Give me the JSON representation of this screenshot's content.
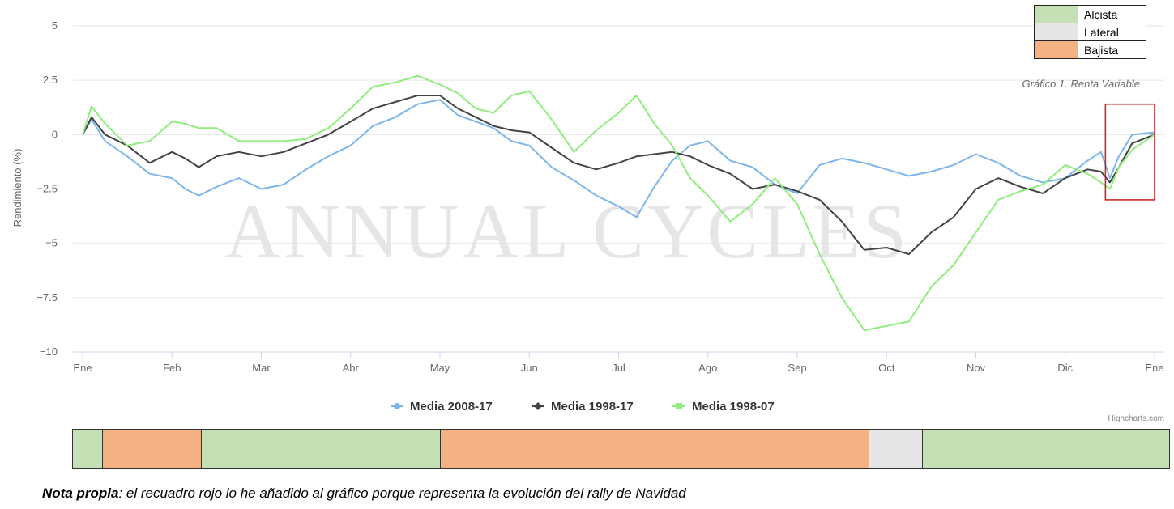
{
  "chart_data": {
    "type": "line",
    "ylabel": "Rendimiento (%)",
    "subtitle": "Gráfico 1. Renta Variable",
    "ylim": [
      -10,
      5
    ],
    "yticks": [
      5,
      2.5,
      0,
      -2.5,
      -5,
      -7.5,
      -10
    ],
    "ytick_labels": [
      "5",
      "2.5",
      "0",
      "−2.5",
      "−5",
      "−7.5",
      "−10"
    ],
    "xlim": [
      0,
      12
    ],
    "xticks": [
      0,
      1,
      2,
      3,
      4,
      5,
      6,
      7,
      8,
      9,
      10,
      11,
      12
    ],
    "xtick_labels": [
      "Ene",
      "Feb",
      "Mar",
      "Abr",
      "May",
      "Jun",
      "Jul",
      "Ago",
      "Sep",
      "Oct",
      "Nov",
      "Dic",
      "Ene"
    ],
    "grid": true,
    "legend_position": "bottom",
    "watermark": "ANNUAL CYCLES",
    "credits": "Highcharts.com",
    "highlight_box": {
      "x": [
        11.45,
        12
      ],
      "y": [
        -3,
        1.4
      ],
      "color": "#c62828"
    },
    "series": [
      {
        "name": "Media 2008-17",
        "color": "#7cb5ec",
        "marker": "circle",
        "x": [
          0,
          0.1,
          0.25,
          0.5,
          0.75,
          1.0,
          1.15,
          1.3,
          1.5,
          1.75,
          2.0,
          2.25,
          2.5,
          2.75,
          3.0,
          3.25,
          3.5,
          3.75,
          4.0,
          4.2,
          4.4,
          4.6,
          4.8,
          5.0,
          5.25,
          5.5,
          5.75,
          6.0,
          6.2,
          6.4,
          6.6,
          6.8,
          7.0,
          7.25,
          7.5,
          7.75,
          8.0,
          8.25,
          8.5,
          8.75,
          9.0,
          9.25,
          9.5,
          9.75,
          10.0,
          10.25,
          10.5,
          10.75,
          11.0,
          11.25,
          11.4,
          11.5,
          11.6,
          11.75,
          12.0
        ],
        "values": [
          0,
          0.7,
          -0.3,
          -1.0,
          -1.8,
          -2.0,
          -2.5,
          -2.8,
          -2.4,
          -2.0,
          -2.5,
          -2.3,
          -1.6,
          -1.0,
          -0.5,
          0.4,
          0.8,
          1.4,
          1.6,
          0.9,
          0.6,
          0.3,
          -0.3,
          -0.5,
          -1.5,
          -2.1,
          -2.8,
          -3.3,
          -3.8,
          -2.4,
          -1.2,
          -0.5,
          -0.3,
          -1.2,
          -1.5,
          -2.3,
          -2.7,
          -1.4,
          -1.1,
          -1.3,
          -1.6,
          -1.9,
          -1.7,
          -1.4,
          -0.9,
          -1.3,
          -1.9,
          -2.2,
          -2.0,
          -1.2,
          -0.8,
          -2.0,
          -1.0,
          0.0,
          0.1
        ]
      },
      {
        "name": "Media 1998-17",
        "color": "#434348",
        "marker": "diamond",
        "x": [
          0,
          0.1,
          0.25,
          0.5,
          0.75,
          1.0,
          1.15,
          1.3,
          1.5,
          1.75,
          2.0,
          2.25,
          2.5,
          2.75,
          3.0,
          3.25,
          3.5,
          3.75,
          4.0,
          4.2,
          4.4,
          4.6,
          4.8,
          5.0,
          5.25,
          5.5,
          5.75,
          6.0,
          6.2,
          6.4,
          6.6,
          6.8,
          7.0,
          7.25,
          7.5,
          7.75,
          8.0,
          8.25,
          8.5,
          8.75,
          9.0,
          9.25,
          9.5,
          9.75,
          10.0,
          10.25,
          10.5,
          10.75,
          11.0,
          11.25,
          11.4,
          11.5,
          11.6,
          11.75,
          12.0
        ],
        "values": [
          0,
          0.8,
          0.0,
          -0.5,
          -1.3,
          -0.8,
          -1.1,
          -1.5,
          -1.0,
          -0.8,
          -1.0,
          -0.8,
          -0.4,
          0.0,
          0.6,
          1.2,
          1.5,
          1.8,
          1.8,
          1.2,
          0.8,
          0.4,
          0.2,
          0.1,
          -0.6,
          -1.3,
          -1.6,
          -1.3,
          -1.0,
          -0.9,
          -0.8,
          -1.0,
          -1.4,
          -1.8,
          -2.5,
          -2.3,
          -2.6,
          -3.0,
          -4.0,
          -5.3,
          -5.2,
          -5.5,
          -4.5,
          -3.8,
          -2.5,
          -2.0,
          -2.4,
          -2.7,
          -2.0,
          -1.6,
          -1.7,
          -2.2,
          -1.5,
          -0.4,
          0.0
        ]
      },
      {
        "name": "Media 1998-07",
        "color": "#90ed7d",
        "marker": "square",
        "x": [
          0,
          0.1,
          0.25,
          0.5,
          0.75,
          1.0,
          1.15,
          1.3,
          1.5,
          1.75,
          2.0,
          2.25,
          2.5,
          2.75,
          3.0,
          3.25,
          3.5,
          3.75,
          4.0,
          4.2,
          4.4,
          4.6,
          4.8,
          5.0,
          5.25,
          5.5,
          5.75,
          6.0,
          6.2,
          6.4,
          6.6,
          6.8,
          7.0,
          7.25,
          7.5,
          7.75,
          8.0,
          8.25,
          8.5,
          8.75,
          9.0,
          9.25,
          9.5,
          9.75,
          10.0,
          10.25,
          10.5,
          10.75,
          11.0,
          11.25,
          11.4,
          11.5,
          11.6,
          11.75,
          12.0
        ],
        "values": [
          0,
          1.3,
          0.5,
          -0.5,
          -0.3,
          0.6,
          0.5,
          0.3,
          0.3,
          -0.3,
          -0.3,
          -0.3,
          -0.2,
          0.3,
          1.2,
          2.2,
          2.4,
          2.7,
          2.3,
          1.9,
          1.2,
          1.0,
          1.8,
          2.0,
          0.7,
          -0.8,
          0.2,
          1.0,
          1.8,
          0.5,
          -0.5,
          -2.0,
          -2.8,
          -4.0,
          -3.2,
          -2.0,
          -3.2,
          -5.5,
          -7.5,
          -9.0,
          -8.8,
          -8.6,
          -7.0,
          -6.0,
          -4.5,
          -3.0,
          -2.6,
          -2.3,
          -1.4,
          -1.8,
          -2.2,
          -2.5,
          -1.5,
          -0.7,
          0.0
        ]
      }
    ]
  },
  "phase_legend": [
    {
      "label": "Alcista",
      "color": "#c5e0b4"
    },
    {
      "label": "Lateral",
      "color": "#e7e6e6"
    },
    {
      "label": "Bajista",
      "color": "#f4b183"
    }
  ],
  "phase_bar": [
    {
      "phase": "Alcista",
      "fraction": 0.0273,
      "color": "#c5e0b4"
    },
    {
      "phase": "Bajista",
      "fraction": 0.09,
      "color": "#f4b183"
    },
    {
      "phase": "Alcista",
      "fraction": 0.2185,
      "color": "#c5e0b4"
    },
    {
      "phase": "Bajista",
      "fraction": 0.3904,
      "color": "#f4b183"
    },
    {
      "phase": "Lateral",
      "fraction": 0.0494,
      "color": "#e7e6e6"
    },
    {
      "phase": "Alcista",
      "fraction": 0.2244,
      "color": "#c5e0b4"
    }
  ],
  "note": {
    "bold": "Nota propia",
    "text": ": el recuadro rojo lo he añadido al gráfico porque representa la evolución del rally de Navidad"
  }
}
